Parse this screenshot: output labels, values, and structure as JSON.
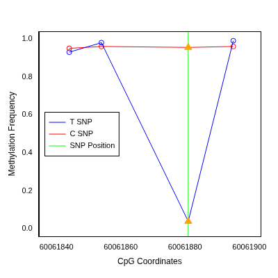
{
  "chart_data": {
    "type": "line",
    "xlabel": "CpG Coordinates",
    "ylabel": "Methylation Frequency",
    "series": [
      {
        "name": "T SNP",
        "color": "#0000ff",
        "marker": [
          "circle",
          "circle",
          "triangle",
          "circle"
        ],
        "colors": [
          "#0000ff",
          "#0000ff",
          "#ffa500",
          "#0000ff"
        ],
        "x": [
          60061844,
          60061854,
          60061881,
          60061895
        ],
        "values": [
          0.93,
          0.98,
          0.04,
          0.99
        ]
      },
      {
        "name": "C SNP",
        "color": "#ff0000",
        "marker": [
          "circle",
          "circle",
          "triangle",
          "circle"
        ],
        "colors": [
          "#ff0000",
          "#ff0000",
          "#ffa500",
          "#ff0000"
        ],
        "x": [
          60061844,
          60061854,
          60061881,
          60061895
        ],
        "values": [
          0.95,
          0.96,
          0.955,
          0.96
        ]
      },
      {
        "name": "SNP Position",
        "color": "#00ff00",
        "type": "vline",
        "x": 60061881
      }
    ],
    "xlim": [
      60061834.5,
      60061903.5
    ],
    "xticks": [
      60061840,
      60061860,
      60061880,
      60061900
    ],
    "ylim": [
      -0.04,
      1.04
    ],
    "yticks": [
      {
        "value": 0,
        "label": "0.0"
      },
      {
        "value": 0.2,
        "label": "0.2"
      },
      {
        "value": 0.4,
        "label": "0.4"
      },
      {
        "value": 0.6,
        "label": "0.6"
      },
      {
        "value": 0.8,
        "label": "0.8"
      },
      {
        "value": 1,
        "label": "1.0"
      }
    ],
    "grid": false,
    "legend": "left"
  }
}
